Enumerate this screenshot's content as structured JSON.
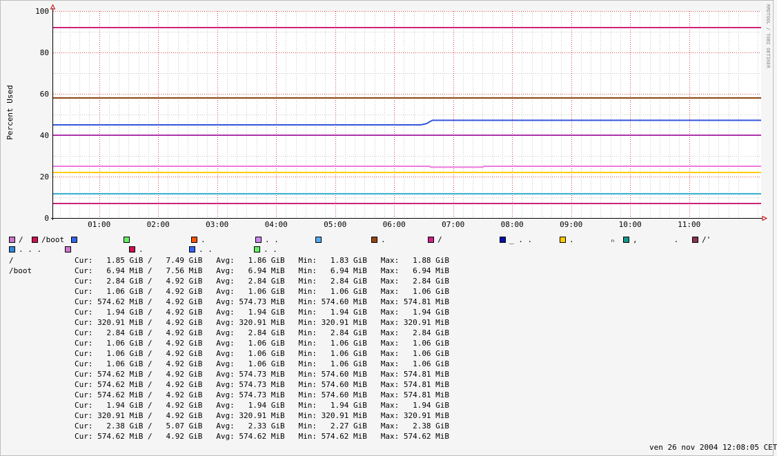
{
  "chart_data": {
    "type": "line",
    "ylabel": "Percent Used",
    "side_label": "RRDTOOL / TOBI OETIKER",
    "ylim": [
      0,
      100
    ],
    "y_ticks": [
      "0",
      "20",
      "40",
      "60",
      "80",
      "100"
    ],
    "x_ticks": [
      "01:00",
      "02:00",
      "03:00",
      "04:00",
      "05:00",
      "06:00",
      "07:00",
      "08:00",
      "09:00",
      "10:00",
      "11:00"
    ],
    "grid": true,
    "x_range_hours": [
      0.22,
      12.22
    ],
    "series": [
      {
        "color": "#cc2277",
        "points": [
          [
            0.22,
            92
          ],
          [
            12.22,
            92
          ]
        ]
      },
      {
        "color": "#8b4513",
        "points": [
          [
            0.22,
            58
          ],
          [
            12.22,
            58
          ]
        ]
      },
      {
        "color": "#3355dd",
        "points": [
          [
            0.22,
            45
          ],
          [
            6.45,
            45
          ],
          [
            6.55,
            45.6
          ],
          [
            6.6,
            46.5
          ],
          [
            6.65,
            47.2
          ],
          [
            12.22,
            47.2
          ]
        ]
      },
      {
        "color": "#aa33aa",
        "points": [
          [
            0.22,
            40
          ],
          [
            12.22,
            40
          ]
        ]
      },
      {
        "color": "#ee77dd",
        "points": [
          [
            0.22,
            25
          ],
          [
            6.6,
            25
          ],
          [
            6.62,
            24.6
          ],
          [
            7.5,
            24.6
          ],
          [
            7.52,
            25
          ],
          [
            12.22,
            25
          ]
        ]
      },
      {
        "color": "#ffcc00",
        "points": [
          [
            0.22,
            22
          ],
          [
            12.22,
            22
          ]
        ]
      },
      {
        "color": "#33aacc",
        "points": [
          [
            0.22,
            11.7
          ],
          [
            12.22,
            11.7
          ]
        ]
      },
      {
        "color": "#cc2277",
        "points": [
          [
            0.22,
            7
          ],
          [
            12.22,
            7
          ]
        ]
      }
    ],
    "legend": {
      "row1": [
        {
          "color": "#cc77cc",
          "label": "/"
        },
        {
          "color": "#cc1155",
          "label": "/boot"
        },
        {
          "color": "#3366ee",
          "label": ""
        },
        {
          "color": "#66ee66",
          "label": ""
        },
        {
          "color": "#ff5500",
          "label": "."
        },
        {
          "color": "#cc88ee",
          "label": ". ."
        },
        {
          "color": "#55aaee",
          "label": ""
        },
        {
          "color": "#994411",
          "label": "."
        },
        {
          "color": "#cc2288",
          "label": "/"
        },
        {
          "color": "#0011aa",
          "label": "_ . ."
        },
        {
          "color": "#ffcc00",
          "label": ".        ₙ"
        },
        {
          "color": "#119988",
          "label": ",        ."
        },
        {
          "color": "#883355",
          "label": "/'"
        }
      ],
      "row2": [
        {
          "color": "#3388dd",
          "label": ". . ."
        },
        {
          "color": "#cc77cc",
          "label": ""
        },
        {
          "color": "#cc1155",
          "label": "."
        },
        {
          "color": "#3366ee",
          "label": ". ."
        },
        {
          "color": "#66ee66",
          "label": ". ."
        }
      ]
    },
    "table": [
      {
        "name": "/",
        "values": "Cur:   1.85 GiB /   7.49 GiB   Avg:   1.86 GiB   Min:   1.83 GiB   Max:   1.88 GiB"
      },
      {
        "name": "/boot",
        "values": "Cur:   6.94 MiB /   7.56 MiB   Avg:   6.94 MiB   Min:   6.94 MiB   Max:   6.94 MiB"
      },
      {
        "name": "",
        "values": "Cur:   2.84 GiB /   4.92 GiB   Avg:   2.84 GiB   Min:   2.84 GiB   Max:   2.84 GiB"
      },
      {
        "name": "",
        "values": "Cur:   1.06 GiB /   4.92 GiB   Avg:   1.06 GiB   Min:   1.06 GiB   Max:   1.06 GiB"
      },
      {
        "name": "",
        "values": "Cur: 574.62 MiB /   4.92 GiB   Avg: 574.73 MiB   Min: 574.60 MiB   Max: 574.81 MiB"
      },
      {
        "name": "",
        "values": "Cur:   1.94 GiB /   4.92 GiB   Avg:   1.94 GiB   Min:   1.94 GiB   Max:   1.94 GiB"
      },
      {
        "name": "",
        "values": "Cur: 320.91 MiB /   4.92 GiB   Avg: 320.91 MiB   Min: 320.91 MiB   Max: 320.91 MiB"
      },
      {
        "name": "",
        "values": "Cur:   2.84 GiB /   4.92 GiB   Avg:   2.84 GiB   Min:   2.84 GiB   Max:   2.84 GiB"
      },
      {
        "name": "",
        "values": "Cur:   1.06 GiB /   4.92 GiB   Avg:   1.06 GiB   Min:   1.06 GiB   Max:   1.06 GiB"
      },
      {
        "name": "",
        "values": "Cur:   1.06 GiB /   4.92 GiB   Avg:   1.06 GiB   Min:   1.06 GiB   Max:   1.06 GiB"
      },
      {
        "name": "",
        "values": "Cur:   1.06 GiB /   4.92 GiB   Avg:   1.06 GiB   Min:   1.06 GiB   Max:   1.06 GiB"
      },
      {
        "name": "",
        "values": "Cur: 574.62 MiB /   4.92 GiB   Avg: 574.73 MiB   Min: 574.60 MiB   Max: 574.81 MiB"
      },
      {
        "name": "",
        "values": "Cur: 574.62 MiB /   4.92 GiB   Avg: 574.73 MiB   Min: 574.60 MiB   Max: 574.81 MiB"
      },
      {
        "name": "",
        "values": "Cur: 574.62 MiB /   4.92 GiB   Avg: 574.73 MiB   Min: 574.60 MiB   Max: 574.81 MiB"
      },
      {
        "name": "",
        "values": "Cur:   1.94 GiB /   4.92 GiB   Avg:   1.94 GiB   Min:   1.94 GiB   Max:   1.94 GiB"
      },
      {
        "name": "",
        "values": "Cur: 320.91 MiB /   4.92 GiB   Avg: 320.91 MiB   Min: 320.91 MiB   Max: 320.91 MiB"
      },
      {
        "name": "",
        "values": "Cur:   2.38 GiB /   5.07 GiB   Avg:   2.33 GiB   Min:   2.27 GiB   Max:   2.38 GiB"
      },
      {
        "name": "",
        "values": "Cur: 574.62 MiB /   4.92 GiB   Avg: 574.62 MiB   Min: 574.62 MiB   Max: 574.62 MiB"
      }
    ],
    "timestamp": "ven 26 nov 2004 12:08:05 CET"
  }
}
